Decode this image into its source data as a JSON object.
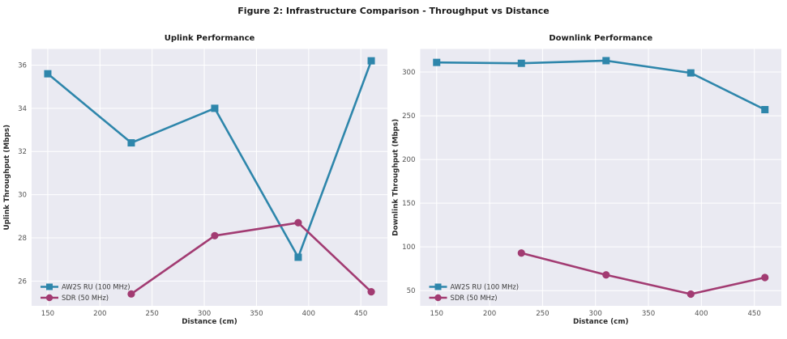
{
  "figure": {
    "title": "Figure 2: Infrastructure Comparison - Throughput vs Distance"
  },
  "style": {
    "plot_bg": "#eaeaf2",
    "grid_color": "#ffffff",
    "blue": "#2E86AB",
    "magenta": "#A23B72"
  },
  "chart_data": [
    {
      "type": "line",
      "title": "Uplink Performance",
      "xlabel": "Distance (cm)",
      "ylabel": "Uplink Throughput (Mbps)",
      "x_ticks": [
        150,
        200,
        250,
        300,
        350,
        400,
        450
      ],
      "y_ticks": [
        26,
        28,
        30,
        32,
        34,
        36
      ],
      "xlim": [
        134.5,
        475.5
      ],
      "ylim": [
        24.85,
        36.75
      ],
      "grid": true,
      "legend_position": "lower left",
      "series": [
        {
          "name": "AW2S RU (100 MHz)",
          "color": "#2E86AB",
          "marker": "square",
          "x": [
            150,
            230,
            310,
            390,
            460
          ],
          "y": [
            35.6,
            32.4,
            34.0,
            27.1,
            36.2
          ]
        },
        {
          "name": "SDR (50 MHz)",
          "color": "#A23B72",
          "marker": "circle",
          "x": [
            230,
            310,
            390,
            460
          ],
          "y": [
            25.4,
            28.1,
            28.7,
            25.5
          ]
        }
      ]
    },
    {
      "type": "line",
      "title": "Downlink Performance",
      "xlabel": "Distance (cm)",
      "ylabel": "Downlink Throughput (Mbps)",
      "x_ticks": [
        150,
        200,
        250,
        300,
        350,
        400,
        450
      ],
      "y_ticks": [
        50,
        100,
        150,
        200,
        250,
        300
      ],
      "xlim": [
        134.5,
        475.5
      ],
      "ylim": [
        32.6,
        326.4
      ],
      "grid": true,
      "legend_position": "lower left",
      "series": [
        {
          "name": "AW2S RU (100 MHz)",
          "color": "#2E86AB",
          "marker": "square",
          "x": [
            150,
            230,
            310,
            390,
            460
          ],
          "y": [
            311,
            310,
            313,
            299,
            257
          ]
        },
        {
          "name": "SDR (50 MHz)",
          "color": "#A23B72",
          "marker": "circle",
          "x": [
            230,
            310,
            390,
            460
          ],
          "y": [
            93,
            68,
            46,
            65
          ]
        }
      ]
    }
  ]
}
